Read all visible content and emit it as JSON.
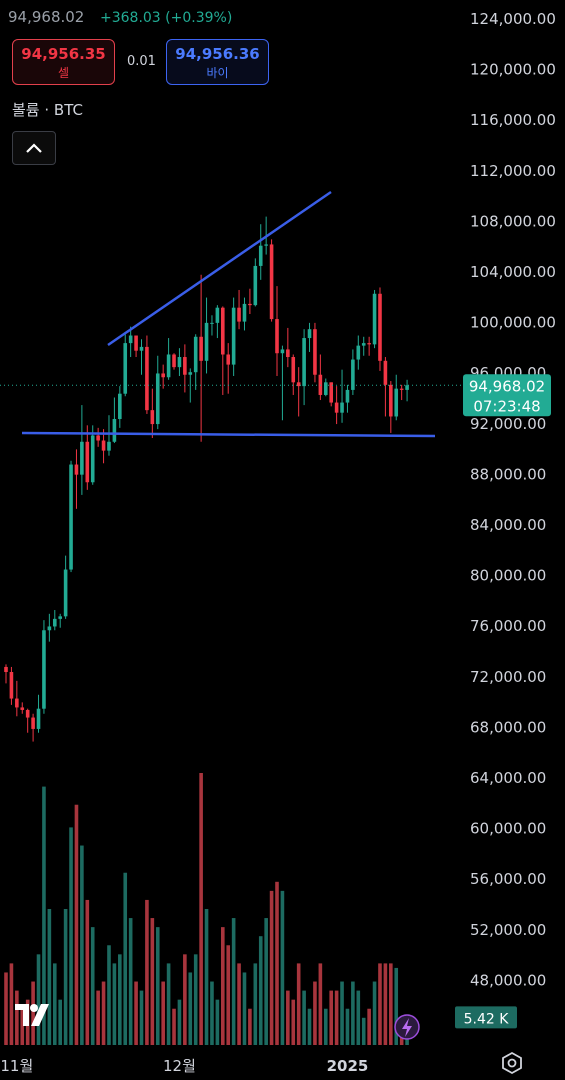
{
  "header": {
    "price": "94,968.02",
    "change": "+368.03 (+0.39%)",
    "sell_price": "94,956.35",
    "sell_label": "셀",
    "spread": "0.01",
    "buy_price": "94,956.36",
    "buy_label": "바이",
    "volume_title": "볼륨 · BTC"
  },
  "chart_data": {
    "type": "candlestick",
    "categories": [
      null,
      null,
      "11월",
      null,
      null,
      null,
      null,
      null,
      null,
      null,
      null,
      null,
      null,
      null,
      null,
      null,
      null,
      null,
      null,
      null,
      null,
      null,
      null,
      null,
      null,
      null,
      null,
      null,
      null,
      null,
      null,
      null,
      "12월",
      null,
      null,
      null,
      null,
      null,
      null,
      null,
      null,
      null,
      null,
      null,
      null,
      null,
      null,
      null,
      null,
      null,
      null,
      null,
      null,
      null,
      null,
      null,
      null,
      null,
      null,
      null,
      null,
      null,
      null,
      "2025",
      null,
      null,
      null,
      null,
      null,
      null,
      null,
      null,
      null,
      null,
      null
    ],
    "open": [
      72700,
      72300,
      70200,
      69500,
      69300,
      68700,
      67800,
      69400,
      75600,
      75900,
      76500,
      76700,
      80400,
      88700,
      87900,
      90500,
      87300,
      91000,
      90600,
      89800,
      90500,
      92300,
      94300,
      98300,
      98900,
      97700,
      98000,
      93000,
      91900,
      95900,
      95600,
      97400,
      96400,
      97200,
      95800,
      96000,
      98800,
      96900,
      99900,
      99900,
      101100,
      97400,
      96600,
      101100,
      100000,
      101400,
      101300,
      104400,
      106000,
      106100,
      100200,
      97500,
      97800,
      97200,
      95200,
      94900,
      98700,
      99400,
      95800,
      94200,
      95200,
      93600,
      92800,
      93600,
      94600,
      97000,
      98100,
      98300,
      98200,
      102200,
      96900,
      95000,
      92500,
      94700,
      94600
    ],
    "high": [
      72900,
      72700,
      71600,
      69900,
      69400,
      69000,
      70500,
      76400,
      76900,
      77200,
      76900,
      81500,
      89000,
      89900,
      93400,
      91800,
      91800,
      91600,
      91500,
      92600,
      94000,
      94900,
      99000,
      99600,
      98900,
      98600,
      98900,
      94700,
      97300,
      96600,
      98700,
      97500,
      97900,
      98200,
      96300,
      99000,
      103700,
      101900,
      100500,
      101300,
      101200,
      98300,
      101900,
      102500,
      101900,
      102600,
      105000,
      107700,
      108300,
      106500,
      102800,
      98100,
      99500,
      97400,
      96400,
      99400,
      99900,
      99900,
      97400,
      95500,
      95200,
      94900,
      96200,
      95000,
      97800,
      98900,
      98800,
      98800,
      102500,
      102700,
      97200,
      95300,
      95800,
      95000,
      95400
    ],
    "low": [
      71400,
      69700,
      68800,
      69000,
      67500,
      66800,
      67500,
      69000,
      74700,
      75600,
      75800,
      76500,
      80200,
      85200,
      86300,
      86700,
      87100,
      90100,
      88800,
      89400,
      90400,
      91600,
      94100,
      97200,
      97200,
      95800,
      92700,
      90800,
      91500,
      94700,
      95400,
      96200,
      95700,
      94400,
      93600,
      94600,
      90500,
      95900,
      98900,
      98700,
      94200,
      94300,
      95700,
      99400,
      99300,
      100600,
      101200,
      103300,
      105300,
      100000,
      95700,
      92200,
      96400,
      94200,
      92500,
      93400,
      97600,
      95200,
      93800,
      94100,
      93300,
      91900,
      92000,
      92800,
      94200,
      96200,
      97300,
      97300,
      97900,
      96100,
      92500,
      91200,
      92200,
      93800,
      93700
    ],
    "close": [
      72300,
      70200,
      69500,
      69300,
      68700,
      67800,
      69400,
      75600,
      75900,
      76500,
      76700,
      80400,
      88700,
      87900,
      90500,
      87300,
      91000,
      90600,
      89800,
      90500,
      92300,
      94300,
      98300,
      98900,
      97700,
      98000,
      93000,
      91900,
      95900,
      95600,
      97400,
      96400,
      97200,
      95800,
      96000,
      98800,
      96900,
      99900,
      99900,
      101100,
      97400,
      96600,
      101100,
      100000,
      101400,
      101300,
      104400,
      106000,
      106100,
      100200,
      97500,
      97800,
      97200,
      95200,
      94900,
      98700,
      99400,
      95800,
      94200,
      95200,
      93600,
      92800,
      93600,
      94600,
      97000,
      98100,
      98300,
      98200,
      102200,
      96900,
      95000,
      92500,
      94700,
      94600,
      94968.02
    ],
    "last_price_label": "94,968.02",
    "countdown": "07:23:48",
    "volume": [
      16,
      18,
      12,
      8,
      10,
      14,
      20,
      57,
      30,
      18,
      10,
      30,
      48,
      53,
      44,
      32,
      26,
      12,
      14,
      22,
      18,
      20,
      38,
      28,
      14,
      12,
      32,
      28,
      26,
      14,
      18,
      8,
      10,
      20,
      16,
      20,
      60,
      30,
      14,
      10,
      26,
      22,
      28,
      18,
      16,
      8,
      18,
      24,
      28,
      34,
      36,
      34,
      12,
      10,
      18,
      12,
      8,
      14,
      18,
      8,
      12,
      12,
      14,
      8,
      14,
      12,
      6,
      8,
      14,
      18,
      18,
      18,
      17,
      3,
      5.42
    ],
    "volume_label": "5.42 K",
    "volume_lim": [
      0,
      60
    ],
    "up_color": "#22ab94",
    "down_color": "#f23645",
    "volume_up_color": "#1d6b61",
    "volume_down_color": "#a8353d",
    "ylim": [
      44000,
      124000
    ],
    "yticks": [
      {
        "value": 124000,
        "label": "124,000.00"
      },
      {
        "value": 120000,
        "label": "120,000.00"
      },
      {
        "value": 116000,
        "label": "116,000.00"
      },
      {
        "value": 112000,
        "label": "112,000.00"
      },
      {
        "value": 108000,
        "label": "108,000.00"
      },
      {
        "value": 104000,
        "label": "104,000.00"
      },
      {
        "value": 100000,
        "label": "100,000.00"
      },
      {
        "value": 96000,
        "label": "96,000.00"
      },
      {
        "value": 92000,
        "label": "92,000.00"
      },
      {
        "value": 88000,
        "label": "88,000.00"
      },
      {
        "value": 84000,
        "label": "84,000.00"
      },
      {
        "value": 80000,
        "label": "80,000.00"
      },
      {
        "value": 76000,
        "label": "76,000.00"
      },
      {
        "value": 72000,
        "label": "72,000.00"
      },
      {
        "value": 68000,
        "label": "68,000.00"
      },
      {
        "value": 64000,
        "label": "64,000.00"
      },
      {
        "value": 60000,
        "label": "60,000.00"
      },
      {
        "value": 56000,
        "label": "56,000.00"
      },
      {
        "value": 52000,
        "label": "52,000.00"
      },
      {
        "value": 48000,
        "label": "48,000.00"
      }
    ],
    "grid": false
  }
}
